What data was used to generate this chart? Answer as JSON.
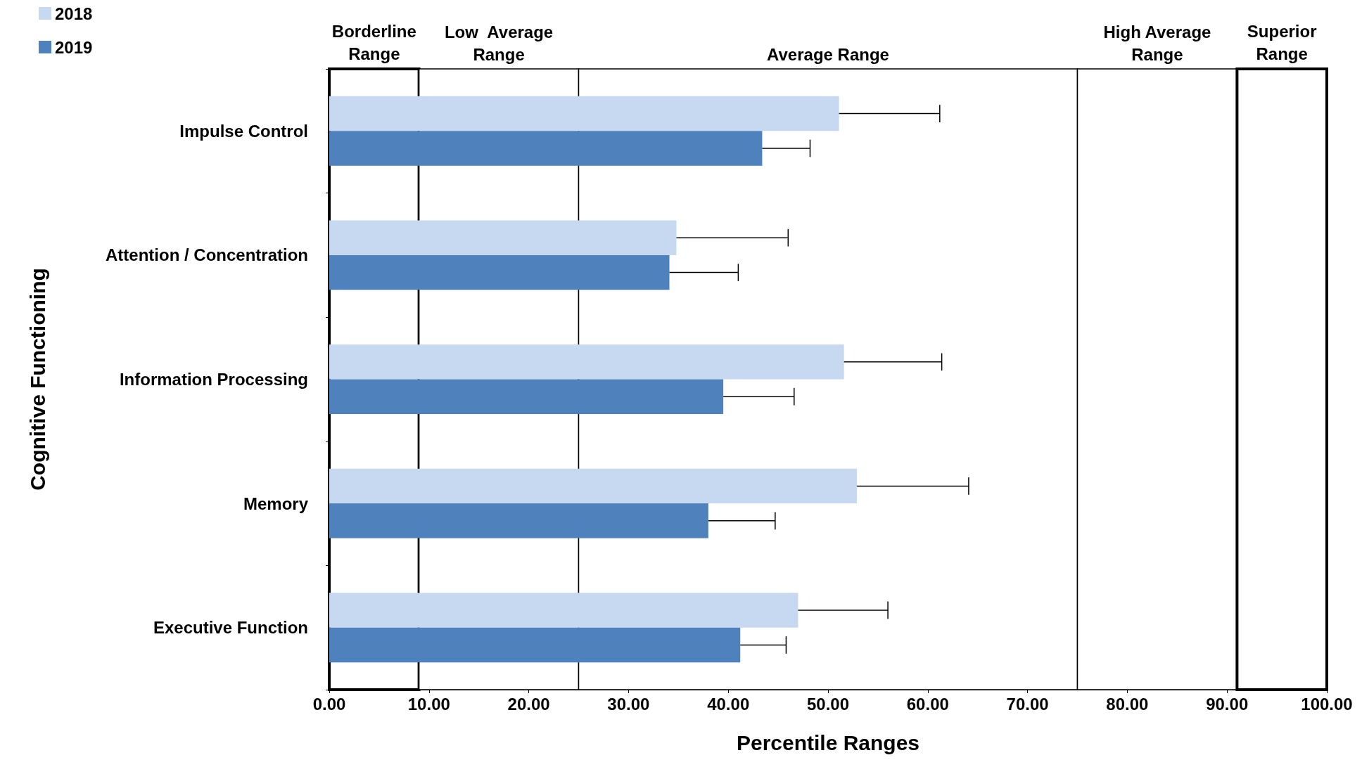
{
  "chart_data": {
    "type": "bar",
    "orientation": "horizontal",
    "xlabel": "Percentile Ranges",
    "ylabel": "Cognitive Functioning",
    "categories": [
      "Impulse Control",
      "Attention / Concentration",
      "Information Processing",
      "Memory",
      "Executive Function"
    ],
    "series": [
      {
        "name": "2018",
        "color": "#c6d9f1",
        "values": [
          51.1,
          34.8,
          51.6,
          52.9,
          47.0
        ],
        "errors": [
          [
            51.1,
            61.2
          ],
          [
            34.8,
            46.0
          ],
          [
            51.6,
            61.4
          ],
          [
            52.9,
            64.1
          ],
          [
            47.0,
            56.0
          ]
        ]
      },
      {
        "name": "2019",
        "color": "#4f81bd",
        "values": [
          43.4,
          34.1,
          39.5,
          38.0,
          41.2
        ],
        "errors": [
          [
            43.4,
            48.2
          ],
          [
            34.1,
            41.0
          ],
          [
            39.5,
            46.6
          ],
          [
            38.0,
            44.7
          ],
          [
            41.2,
            45.8
          ]
        ]
      }
    ],
    "xlim": [
      0,
      100
    ],
    "xticks": [
      {
        "value": 0,
        "label": "0.00"
      },
      {
        "value": 10,
        "label": "10.00"
      },
      {
        "value": 20,
        "label": "20.00"
      },
      {
        "value": 30,
        "label": "30.00"
      },
      {
        "value": 40,
        "label": "40.00"
      },
      {
        "value": 50,
        "label": "50.00"
      },
      {
        "value": 60,
        "label": "60.00"
      },
      {
        "value": 70,
        "label": "70.00"
      },
      {
        "value": 80,
        "label": "80.00"
      },
      {
        "value": 90,
        "label": "90.00"
      },
      {
        "value": 100,
        "label": "100.00"
      }
    ],
    "bands": [
      {
        "axis": "x",
        "from": 0,
        "to": 9,
        "label": "Borderline\nRange",
        "color": "#ffffff"
      },
      {
        "axis": "x",
        "from": 9,
        "to": 25,
        "label": "Low  Average\nRange",
        "color": "#ffffff"
      },
      {
        "axis": "x",
        "from": 25,
        "to": 75,
        "label": "Average Range",
        "color": "#ffffff"
      },
      {
        "axis": "x",
        "from": 75,
        "to": 91,
        "label": "High Average\nRange",
        "color": "#ffffff"
      },
      {
        "axis": "x",
        "from": 91,
        "to": 100,
        "label": "Superior\nRange",
        "color": "#ffffff"
      }
    ],
    "legend": "top left"
  }
}
